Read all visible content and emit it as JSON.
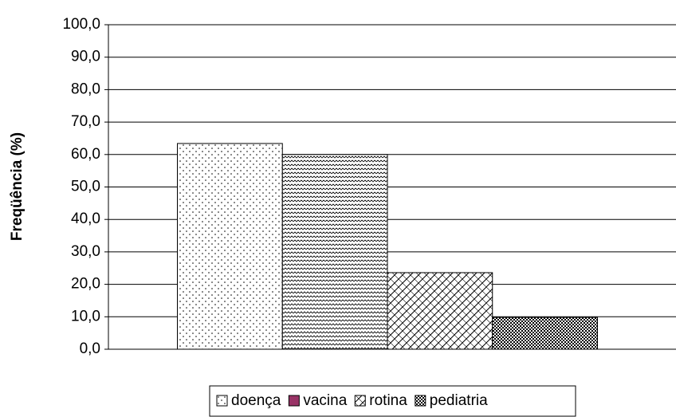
{
  "chart_data": {
    "type": "bar",
    "y_label": "Freqüência (%)",
    "categories": [
      null
    ],
    "series": [
      {
        "name": "doença",
        "color": "#ffffff",
        "pattern": "dots",
        "values": [
          63.4
        ]
      },
      {
        "name": "vacina",
        "color": "#993366",
        "pattern": "waves",
        "values": [
          60.0
        ]
      },
      {
        "name": "rotina",
        "color": "#ffffff",
        "pattern": "diagonal-cross",
        "values": [
          23.6
        ]
      },
      {
        "name": "pediatria",
        "color": "#ffffff",
        "pattern": "checker",
        "values": [
          9.8
        ]
      }
    ],
    "ylim": [
      0,
      100
    ],
    "yticks": [
      {
        "value": 0,
        "label": "0,0"
      },
      {
        "value": 10,
        "label": "10,0"
      },
      {
        "value": 20,
        "label": "20,0"
      },
      {
        "value": 30,
        "label": "30,0"
      },
      {
        "value": 40,
        "label": "40,0"
      },
      {
        "value": 50,
        "label": "50,0"
      },
      {
        "value": 60,
        "label": "60,0"
      },
      {
        "value": 70,
        "label": "70,0"
      },
      {
        "value": 80,
        "label": "80,0"
      },
      {
        "value": 90,
        "label": "90,0"
      },
      {
        "value": 100,
        "label": "100,0"
      }
    ],
    "grid": true,
    "legend": "bottom"
  }
}
